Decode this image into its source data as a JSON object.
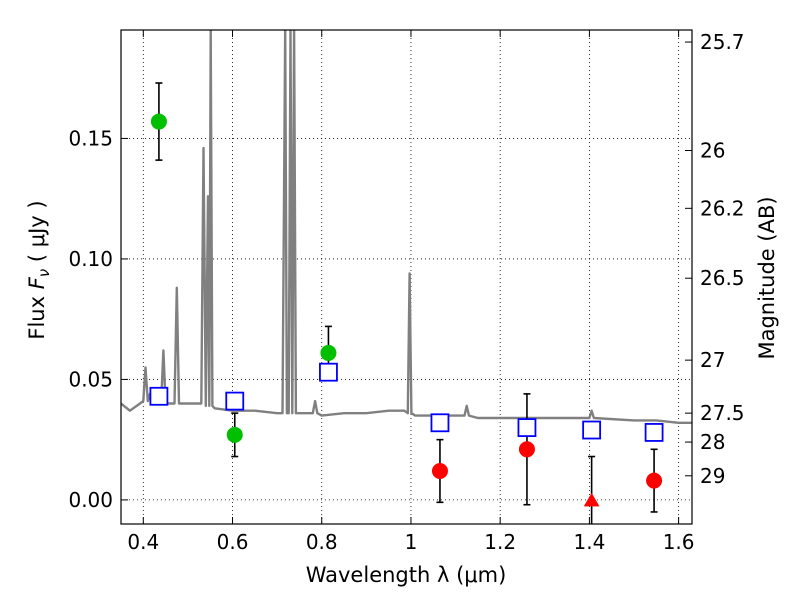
{
  "chart_data": {
    "type": "scatter",
    "title": "",
    "xlabel": "Wavelength  λ (μm)",
    "ylabel": {
      "prefix": "Flux  ",
      "symbol": "F",
      "subscript": "ν",
      "suffix": "  ( μJy )"
    },
    "y2label": "Magnitude (AB)",
    "xlim": [
      0.35,
      1.63
    ],
    "ylim": [
      -0.01,
      0.195
    ],
    "grid": true,
    "xticks": [
      0.4,
      0.6,
      0.8,
      1.0,
      1.2,
      1.4,
      1.6
    ],
    "xtick_labels": [
      "0.4",
      "0.6",
      "0.8",
      "1",
      "1.2",
      "1.4",
      "1.6"
    ],
    "yticks": [
      0.0,
      0.05,
      0.1,
      0.15
    ],
    "ytick_labels": [
      "0.00",
      "0.05",
      "0.10",
      "0.15"
    ],
    "mag_ticks": [
      {
        "label": "25.7",
        "flux": 0.19
      },
      {
        "label": "26",
        "flux": 0.145
      },
      {
        "label": "26.2",
        "flux": 0.121
      },
      {
        "label": "26.5",
        "flux": 0.092
      },
      {
        "label": "27",
        "flux": 0.058
      },
      {
        "label": "27.5",
        "flux": 0.036
      },
      {
        "label": "28",
        "flux": 0.024
      },
      {
        "label": "29",
        "flux": 0.01
      }
    ],
    "series": [
      {
        "name": "Model spectrum (SED)",
        "kind": "line",
        "color": "#808080",
        "x": [
          0.35,
          0.37,
          0.4,
          0.405,
          0.41,
          0.415,
          0.42,
          0.44,
          0.445,
          0.45,
          0.455,
          0.47,
          0.475,
          0.48,
          0.5,
          0.53,
          0.535,
          0.54,
          0.545,
          0.548,
          0.551,
          0.555,
          0.56,
          0.6,
          0.65,
          0.7,
          0.712,
          0.718,
          0.722,
          0.726,
          0.73,
          0.734,
          0.738,
          0.742,
          0.75,
          0.78,
          0.785,
          0.79,
          0.8,
          0.85,
          0.9,
          0.95,
          0.985,
          0.993,
          0.997,
          1.001,
          1.01,
          1.05,
          1.1,
          1.12,
          1.125,
          1.13,
          1.15,
          1.2,
          1.3,
          1.4,
          1.405,
          1.41,
          1.5,
          1.55,
          1.6,
          1.63
        ],
        "y": [
          0.04,
          0.037,
          0.041,
          0.055,
          0.041,
          0.044,
          0.041,
          0.04,
          0.062,
          0.04,
          0.04,
          0.04,
          0.088,
          0.04,
          0.04,
          0.04,
          0.146,
          0.039,
          0.126,
          0.039,
          0.195,
          0.039,
          0.038,
          0.037,
          0.037,
          0.036,
          0.036,
          0.195,
          0.036,
          0.036,
          0.195,
          0.036,
          0.195,
          0.036,
          0.036,
          0.036,
          0.041,
          0.036,
          0.035,
          0.036,
          0.036,
          0.037,
          0.037,
          0.036,
          0.094,
          0.036,
          0.035,
          0.035,
          0.035,
          0.035,
          0.039,
          0.035,
          0.034,
          0.034,
          0.034,
          0.034,
          0.037,
          0.034,
          0.033,
          0.033,
          0.032,
          0.032
        ]
      },
      {
        "name": "Model photometry",
        "kind": "open-square",
        "color": "#0000ff",
        "x": [
          0.435,
          0.605,
          0.815,
          1.065,
          1.26,
          1.405,
          1.545
        ],
        "y": [
          0.043,
          0.041,
          0.053,
          0.032,
          0.03,
          0.029,
          0.028
        ]
      },
      {
        "name": "Optical detections",
        "kind": "circle",
        "color": "#00bf00",
        "x": [
          0.435,
          0.605,
          0.815
        ],
        "y": [
          0.157,
          0.027,
          0.061
        ],
        "yerr": [
          0.016,
          0.009,
          0.011
        ]
      },
      {
        "name": "Near-IR detections",
        "kind": "circle",
        "color": "#ff0000",
        "x": [
          1.065,
          1.26,
          1.545
        ],
        "y": [
          0.012,
          0.021,
          0.008
        ],
        "yerr": [
          0.013,
          0.023,
          0.013
        ]
      },
      {
        "name": "Near-IR upper limit",
        "kind": "triangle",
        "color": "#ff0000",
        "x": [
          1.405
        ],
        "y": [
          0.0
        ],
        "yerr": [
          0.018
        ]
      }
    ]
  }
}
